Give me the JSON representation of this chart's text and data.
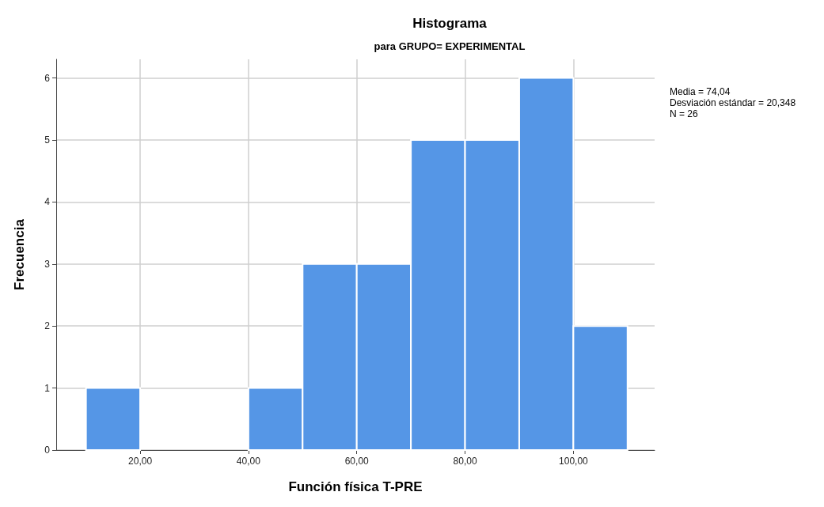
{
  "chart_data": {
    "type": "histogram",
    "title": "Histograma",
    "subtitle": "para GRUPO= EXPERIMENTAL",
    "xlabel": "Función física T-PRE",
    "ylabel": "Frecuencia",
    "bins": [
      10,
      20,
      30,
      40,
      50,
      60,
      70,
      80,
      90,
      100,
      110
    ],
    "values": [
      1,
      0,
      0,
      1,
      3,
      3,
      5,
      5,
      6,
      2
    ],
    "color": "#5596e6",
    "xlim": [
      4.5,
      115
    ],
    "ylim": [
      0,
      6.3
    ],
    "xticks": [
      {
        "value": 20,
        "label": "20,00"
      },
      {
        "value": 40,
        "label": "40,00"
      },
      {
        "value": 60,
        "label": "60,00"
      },
      {
        "value": 80,
        "label": "80,00"
      },
      {
        "value": 100,
        "label": "100,00"
      }
    ],
    "yticks": [
      0,
      1,
      2,
      3,
      4,
      5,
      6
    ],
    "grid": true,
    "annotations": [
      "Media = 74,04",
      "Desviación estándar = 20,348",
      "N = 26"
    ]
  }
}
